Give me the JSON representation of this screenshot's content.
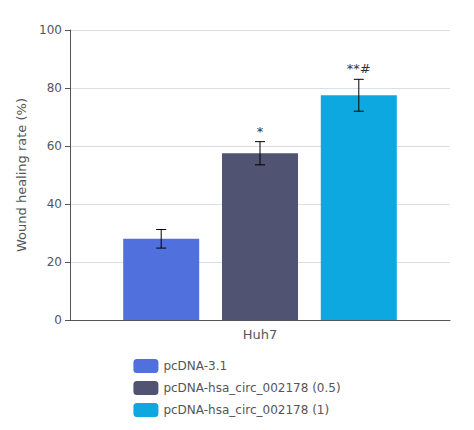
{
  "chart_data": {
    "type": "bar",
    "categories": [
      "Huh7"
    ],
    "series": [
      {
        "name": "pcDNA-3.1",
        "values": [
          28.0
        ],
        "errors": [
          3.2
        ]
      },
      {
        "name": "pcDNA-hsa_circ_002178 (0.5)",
        "values": [
          57.5
        ],
        "errors": [
          4.0
        ],
        "annotations": [
          "*"
        ]
      },
      {
        "name": "pcDNA-hsa_circ_002178 (1)",
        "values": [
          77.5
        ],
        "errors": [
          5.5
        ],
        "annotations": [
          "**#"
        ]
      }
    ],
    "ylabel": "Wound healing rate (%)",
    "ylim": [
      0,
      100
    ],
    "yticks": [
      0,
      20,
      40,
      60,
      80,
      100
    ],
    "legend": "bottom"
  }
}
